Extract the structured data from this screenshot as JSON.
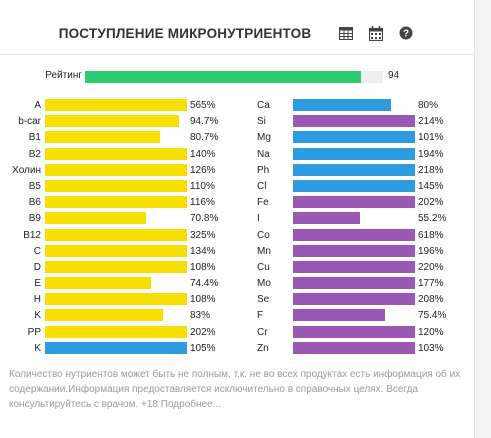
{
  "header": {
    "title": "ПОСТУПЛЕНИЕ МИКРОНУТРИЕНТОВ",
    "icons": [
      "table-icon",
      "calendar-icon",
      "help-icon"
    ]
  },
  "rating": {
    "label": "Рейтинг",
    "value": "94",
    "fraction": 0.94
  },
  "colors": {
    "yellow": "#f7e000",
    "blue": "#2e9be0",
    "purple": "#9b59b6",
    "green": "#2ecc71"
  },
  "vitamins": [
    {
      "name": "A",
      "value": "565%",
      "fraction": 1.0,
      "color": "yellow"
    },
    {
      "name": "b-car",
      "value": "94.7%",
      "fraction": 0.947,
      "color": "yellow"
    },
    {
      "name": "B1",
      "value": "80.7%",
      "fraction": 0.807,
      "color": "yellow"
    },
    {
      "name": "B2",
      "value": "140%",
      "fraction": 1.0,
      "color": "yellow"
    },
    {
      "name": "Холин",
      "value": "126%",
      "fraction": 1.0,
      "color": "yellow"
    },
    {
      "name": "B5",
      "value": "110%",
      "fraction": 1.0,
      "color": "yellow"
    },
    {
      "name": "B6",
      "value": "116%",
      "fraction": 1.0,
      "color": "yellow"
    },
    {
      "name": "B9",
      "value": "70.8%",
      "fraction": 0.708,
      "color": "yellow"
    },
    {
      "name": "B12",
      "value": "325%",
      "fraction": 1.0,
      "color": "yellow"
    },
    {
      "name": "C",
      "value": "134%",
      "fraction": 1.0,
      "color": "yellow"
    },
    {
      "name": "D",
      "value": "108%",
      "fraction": 1.0,
      "color": "yellow"
    },
    {
      "name": "E",
      "value": "74.4%",
      "fraction": 0.744,
      "color": "yellow"
    },
    {
      "name": "H",
      "value": "108%",
      "fraction": 1.0,
      "color": "yellow"
    },
    {
      "name": "K",
      "value": "83%",
      "fraction": 0.83,
      "color": "yellow"
    },
    {
      "name": "PP",
      "value": "202%",
      "fraction": 1.0,
      "color": "yellow"
    },
    {
      "name": "K",
      "value": "105%",
      "fraction": 1.0,
      "color": "blue"
    }
  ],
  "minerals": [
    {
      "name": "Ca",
      "value": "80%",
      "fraction": 0.8,
      "color": "blue"
    },
    {
      "name": "Si",
      "value": "214%",
      "fraction": 1.0,
      "color": "purple"
    },
    {
      "name": "Mg",
      "value": "101%",
      "fraction": 1.0,
      "color": "blue"
    },
    {
      "name": "Na",
      "value": "194%",
      "fraction": 1.0,
      "color": "blue"
    },
    {
      "name": "Ph",
      "value": "218%",
      "fraction": 1.0,
      "color": "blue"
    },
    {
      "name": "Cl",
      "value": "145%",
      "fraction": 1.0,
      "color": "blue"
    },
    {
      "name": "Fe",
      "value": "202%",
      "fraction": 1.0,
      "color": "purple"
    },
    {
      "name": "I",
      "value": "55.2%",
      "fraction": 0.552,
      "color": "purple"
    },
    {
      "name": "Co",
      "value": "618%",
      "fraction": 1.0,
      "color": "purple"
    },
    {
      "name": "Mn",
      "value": "196%",
      "fraction": 1.0,
      "color": "purple"
    },
    {
      "name": "Cu",
      "value": "220%",
      "fraction": 1.0,
      "color": "purple"
    },
    {
      "name": "Mo",
      "value": "177%",
      "fraction": 1.0,
      "color": "purple"
    },
    {
      "name": "Se",
      "value": "208%",
      "fraction": 1.0,
      "color": "purple"
    },
    {
      "name": "F",
      "value": "75.4%",
      "fraction": 0.754,
      "color": "purple"
    },
    {
      "name": "Cr",
      "value": "120%",
      "fraction": 1.0,
      "color": "purple"
    },
    {
      "name": "Zn",
      "value": "103%",
      "fraction": 1.0,
      "color": "purple"
    }
  ],
  "note": {
    "text": "Количество нутриентов может быть не полным, т.к. не во всех продуктах есть информация об их содержании.Информация предоставляется исключительно в справочных целях. Всегда консультируйтесь с врачом. +18 Подробнее..."
  }
}
